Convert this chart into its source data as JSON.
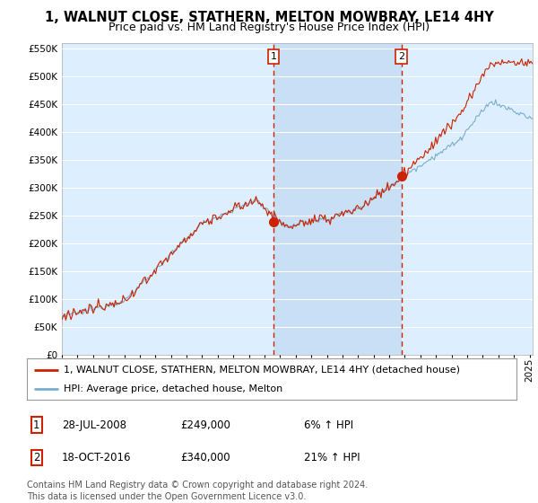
{
  "title": "1, WALNUT CLOSE, STATHERN, MELTON MOWBRAY, LE14 4HY",
  "subtitle": "Price paid vs. HM Land Registry's House Price Index (HPI)",
  "ylim": [
    0,
    560000
  ],
  "yticks": [
    0,
    50000,
    100000,
    150000,
    200000,
    250000,
    300000,
    350000,
    400000,
    450000,
    500000,
    550000
  ],
  "xlim_start": 1995.0,
  "xlim_end": 2025.2,
  "sale1_date": 2008.57,
  "sale1_price": 249000,
  "sale2_date": 2016.79,
  "sale2_price": 340000,
  "legend_line1": "1, WALNUT CLOSE, STATHERN, MELTON MOWBRAY, LE14 4HY (detached house)",
  "legend_line2": "HPI: Average price, detached house, Melton",
  "annotation1_date": "28-JUL-2008",
  "annotation1_price": "£249,000",
  "annotation1_hpi": "6% ↑ HPI",
  "annotation2_date": "18-OCT-2016",
  "annotation2_price": "£340,000",
  "annotation2_hpi": "21% ↑ HPI",
  "footer": "Contains HM Land Registry data © Crown copyright and database right 2024.\nThis data is licensed under the Open Government Licence v3.0.",
  "line_color_red": "#cc2200",
  "line_color_blue": "#7aadcc",
  "bg_color": "#ddeeff",
  "highlight_color": "#c8dff5",
  "grid_color": "#ffffff",
  "sale_vline_color": "#cc2200",
  "title_fontsize": 10.5,
  "subtitle_fontsize": 9,
  "tick_fontsize": 7.5,
  "legend_fontsize": 8,
  "annotation_fontsize": 8.5,
  "footer_fontsize": 7
}
